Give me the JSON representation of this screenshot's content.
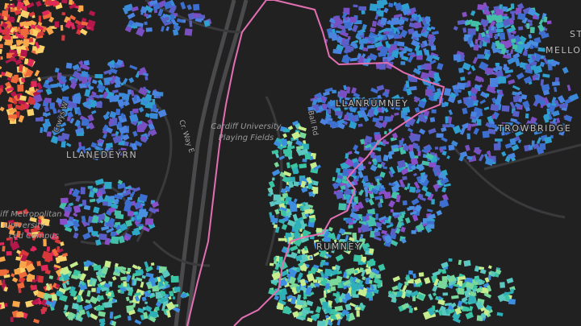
{
  "place_labels": [
    "LLANEDEYRN",
    "LLANRUMNEY",
    "TROWBRIDGE",
    "RUMNEY",
    "ST",
    "MELLO"
  ],
  "landmark_labels": [
    "Cardiff University",
    "Playing Fields",
    "ardiff Metropolitan",
    "University -",
    "ced Campus"
  ],
  "road_labels": [
    "Cr. Way E",
    "Ball Rd",
    "Crwys W"
  ]
}
